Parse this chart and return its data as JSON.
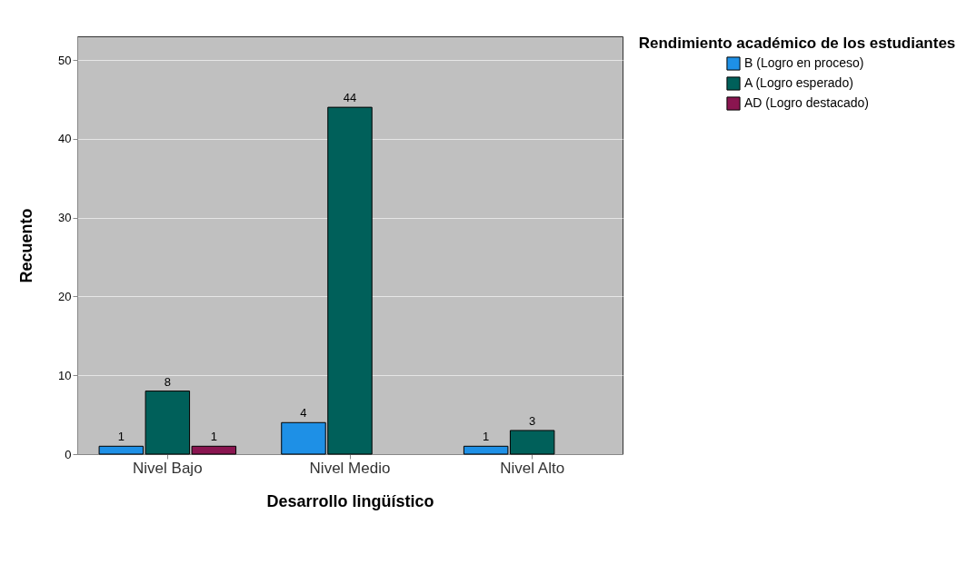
{
  "chart_data": {
    "type": "bar",
    "xlabel": "Desarrollo lingüístico",
    "ylabel": "Recuento",
    "legend_title": "Rendimiento académico de los estudiantes",
    "categories": [
      "Nivel Bajo",
      "Nivel Medio",
      "Nivel Alto"
    ],
    "series": [
      {
        "name": "B (Logro en proceso)",
        "color": "#1e90e6",
        "values": [
          1,
          4,
          1
        ]
      },
      {
        "name": "A (Logro esperado)",
        "color": "#00605a",
        "values": [
          8,
          44,
          3
        ]
      },
      {
        "name": "AD (Logro destacado)",
        "color": "#8a1550",
        "values": [
          1,
          null,
          null
        ]
      }
    ],
    "ylim": [
      0,
      53
    ],
    "yticks": [
      0,
      10,
      20,
      30,
      40,
      50
    ],
    "grid": "y",
    "legend": "top right",
    "data_labels": true
  }
}
